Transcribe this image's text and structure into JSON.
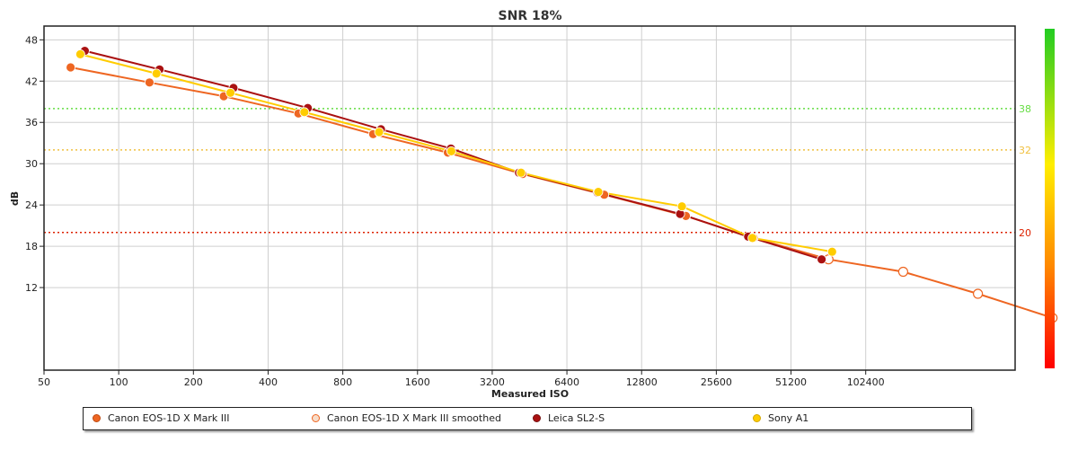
{
  "chart_data": {
    "type": "line",
    "title": "SNR 18%",
    "xlabel": "Measured ISO",
    "ylabel": "dB",
    "x_scale": "log2",
    "x_ticks": [
      50,
      100,
      200,
      400,
      800,
      1600,
      3200,
      6400,
      12800,
      25600,
      51200,
      102400
    ],
    "xlim": [
      50,
      409600
    ],
    "y_ticks": [
      12,
      18,
      24,
      30,
      36,
      42,
      48
    ],
    "ylim": [
      0,
      50
    ],
    "grid": true,
    "legend_position": "bottom",
    "thresholds": [
      {
        "value": 38,
        "label": "38",
        "color": "#66dd44"
      },
      {
        "value": 32,
        "label": "32",
        "color": "#f0c040"
      },
      {
        "value": 20,
        "label": "20",
        "color": "#dd2200"
      }
    ],
    "color_scale": {
      "top": "#22cc22",
      "upper_mid": "#ffee00",
      "lower_mid": "#ff8800",
      "bottom": "#ff0000"
    },
    "series": [
      {
        "name": "Canon EOS-1D X Mark III",
        "color": "#ee6622",
        "marker": "filled",
        "points": [
          [
            64,
            44
          ],
          [
            133,
            41.8
          ],
          [
            265,
            39.8
          ],
          [
            530,
            37.3
          ],
          [
            1060,
            34.3
          ],
          [
            2120,
            31.6
          ],
          [
            4240,
            28.5
          ],
          [
            9050,
            25.5
          ],
          [
            19300,
            22.4
          ],
          [
            36200,
            19.2
          ],
          [
            72500,
            16.1
          ]
        ]
      },
      {
        "name": "Canon EOS-1D X Mark III smoothed",
        "color": "#ee6622",
        "marker": "hollow",
        "points": [
          [
            72500,
            16.1
          ],
          [
            145000,
            14.3
          ],
          [
            290000,
            11.1
          ],
          [
            580000,
            7.6
          ]
        ]
      },
      {
        "name": "Leica SL2-S",
        "color": "#aa1111",
        "marker": "filled",
        "points": [
          [
            73,
            46.4
          ],
          [
            146,
            43.7
          ],
          [
            290,
            41
          ],
          [
            578,
            38.1
          ],
          [
            1140,
            35
          ],
          [
            2180,
            32.2
          ],
          [
            4100,
            28.7
          ],
          [
            8500,
            25.8
          ],
          [
            18300,
            22.7
          ],
          [
            34400,
            19.4
          ],
          [
            68000,
            16.1
          ]
        ]
      },
      {
        "name": "Sony A1",
        "color": "#ffcc00",
        "marker": "filled",
        "points": [
          [
            70,
            45.9
          ],
          [
            142,
            43.1
          ],
          [
            282,
            40.3
          ],
          [
            560,
            37.5
          ],
          [
            1120,
            34.6
          ],
          [
            2190,
            31.8
          ],
          [
            4180,
            28.7
          ],
          [
            8560,
            25.9
          ],
          [
            18600,
            23.8
          ],
          [
            35800,
            19.2
          ],
          [
            75000,
            17.2
          ]
        ]
      }
    ]
  }
}
